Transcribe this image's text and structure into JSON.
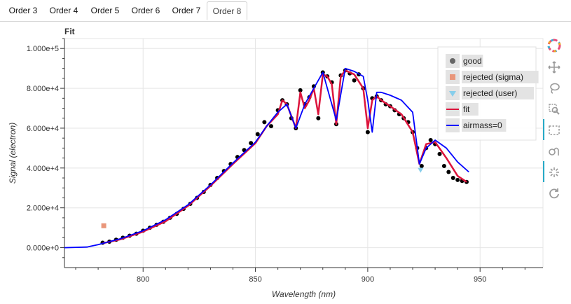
{
  "tabs": [
    {
      "label": "Order 3",
      "active": false
    },
    {
      "label": "Order 4",
      "active": false
    },
    {
      "label": "Order 5",
      "active": false
    },
    {
      "label": "Order 6",
      "active": false
    },
    {
      "label": "Order 7",
      "active": false
    },
    {
      "label": "Order 8",
      "active": true
    }
  ],
  "panel": {
    "title": "Fit"
  },
  "toolbar": {
    "tools": [
      "bokeh-logo-icon",
      "pan-icon",
      "lasso-select-icon",
      "zoom-in-icon",
      "box-select-icon",
      "box-zoom-icon",
      "wheel-zoom-icon",
      "reset-icon"
    ]
  },
  "colors": {
    "good": "#000000",
    "rejected_sigma": "#e9967a",
    "rejected_user": "#87ceeb",
    "fit": "#dc143c",
    "airmass": "#0000ff",
    "legend_bg": "#ffffff"
  },
  "chart_data": {
    "type": "scatter",
    "title": "Fit",
    "xlabel": "Wavelength (nm)",
    "ylabel": "Signal (electron)",
    "xlim": [
      765,
      978
    ],
    "ylim": [
      -10000,
      105000
    ],
    "xticks": [
      800,
      850,
      900,
      950
    ],
    "yticks": [
      0,
      20000,
      40000,
      60000,
      80000,
      100000
    ],
    "ytick_labels": [
      "0.000e+0",
      "2.000e+4",
      "4.000e+4",
      "6.000e+4",
      "8.000e+4",
      "1.000e+5"
    ],
    "grid": true,
    "legend": {
      "position": "top-right",
      "entries": [
        {
          "label": "good",
          "marker": "circle"
        },
        {
          "label": "rejected (sigma)",
          "marker": "square"
        },
        {
          "label": "rejected (user)",
          "marker": "triangle"
        },
        {
          "label": "fit",
          "marker": "line"
        },
        {
          "label": "airmass=0",
          "marker": "line"
        }
      ]
    },
    "series": [
      {
        "name": "good",
        "kind": "scatter",
        "x": [
          782,
          785,
          788,
          791,
          794,
          797,
          800,
          803,
          806,
          809,
          812,
          815,
          818,
          821,
          824,
          827,
          830,
          833,
          836,
          839,
          842,
          845,
          848,
          851,
          854,
          857,
          860,
          862,
          864,
          866,
          868,
          870,
          872,
          874,
          876,
          878,
          880,
          882,
          884,
          886,
          888,
          890,
          892,
          894,
          896,
          898,
          900,
          902,
          904,
          906,
          908,
          910,
          912,
          914,
          916,
          918,
          920,
          922,
          924,
          926,
          928,
          930,
          932,
          934,
          936,
          938,
          940,
          942,
          944
        ],
        "y": [
          2500,
          3000,
          4000,
          5000,
          6000,
          7000,
          8500,
          10000,
          11500,
          13000,
          15000,
          17000,
          19500,
          22000,
          25000,
          28000,
          31500,
          35000,
          38500,
          42000,
          45500,
          49000,
          52500,
          57000,
          63000,
          61000,
          69000,
          74000,
          72000,
          65000,
          60000,
          79000,
          72000,
          75500,
          81000,
          65000,
          88000,
          86000,
          83000,
          62000,
          86500,
          89000,
          87500,
          84000,
          87000,
          80000,
          58000,
          75000,
          76000,
          74000,
          72000,
          71000,
          69000,
          67000,
          65000,
          63000,
          58000,
          50000,
          41000,
          50000,
          54000,
          52000,
          47000,
          41000,
          38000,
          35000,
          34000,
          33500,
          33000
        ]
      },
      {
        "name": "rejected (sigma)",
        "kind": "scatter",
        "x": [
          782.5
        ],
        "y": [
          11000
        ]
      },
      {
        "name": "rejected (user)",
        "kind": "scatter",
        "x": [
          923.5
        ],
        "y": [
          39000
        ]
      },
      {
        "name": "fit",
        "kind": "line",
        "x": [
          782,
          790,
          800,
          810,
          820,
          830,
          840,
          850,
          855,
          860,
          862,
          864,
          866,
          868,
          870,
          872,
          874,
          876,
          878,
          880,
          882,
          884,
          886,
          888,
          890,
          894,
          898,
          900,
          902,
          904,
          906,
          910,
          915,
          920,
          923,
          926,
          930,
          935,
          940,
          944
        ],
        "y": [
          2200,
          4200,
          8000,
          13200,
          21000,
          31000,
          42000,
          52500,
          61000,
          67000,
          74000,
          72000,
          66000,
          60000,
          78000,
          70000,
          74000,
          80000,
          67000,
          87000,
          86000,
          82000,
          62000,
          86000,
          89000,
          87000,
          80000,
          60000,
          74000,
          76000,
          74000,
          71000,
          67000,
          58000,
          42000,
          52000,
          53000,
          45000,
          36000,
          33000
        ]
      },
      {
        "name": "airmass=0",
        "kind": "line",
        "x": [
          765,
          775,
          780,
          790,
          800,
          810,
          820,
          830,
          840,
          850,
          855,
          860,
          864,
          868,
          872,
          876,
          880,
          886,
          890,
          894,
          898,
          900,
          902,
          904,
          906,
          910,
          915,
          920,
          923,
          926,
          930,
          935,
          940,
          945
        ],
        "y": [
          0,
          300,
          1500,
          4500,
          8500,
          14000,
          21500,
          31500,
          42500,
          53000,
          61000,
          68000,
          72000,
          60000,
          72000,
          80000,
          88000,
          64000,
          90000,
          88500,
          86000,
          74000,
          58000,
          78000,
          78000,
          76500,
          74000,
          68000,
          42000,
          50000,
          54000,
          50000,
          43000,
          38000
        ]
      }
    ]
  }
}
